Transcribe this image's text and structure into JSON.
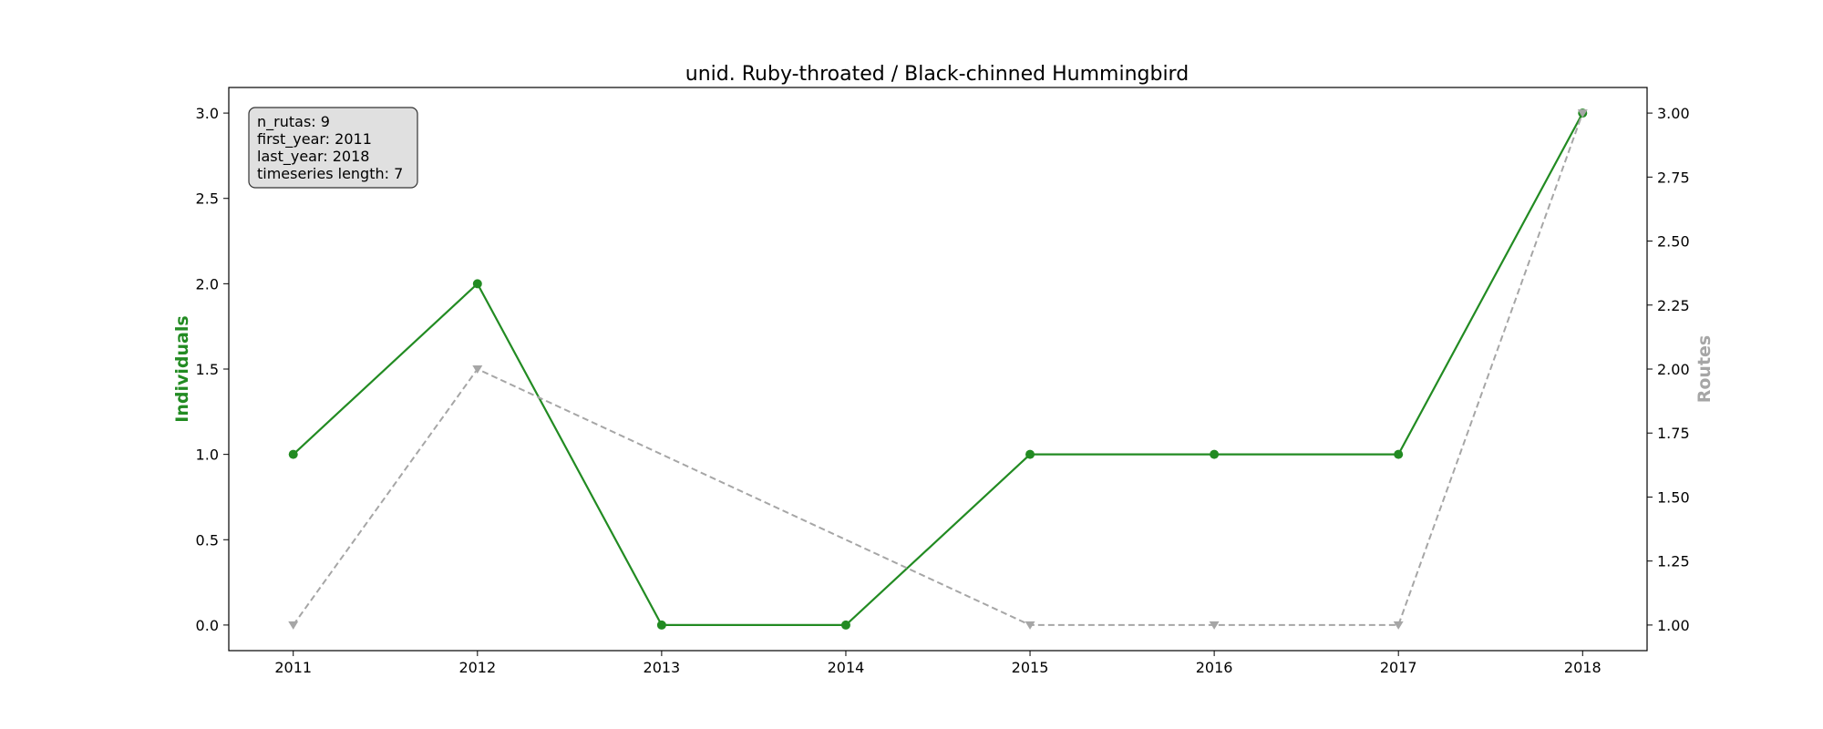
{
  "chart_data": {
    "type": "line",
    "title": "unid. Ruby-throated / Black-chinned Hummingbird",
    "x": [
      2011,
      2012,
      2013,
      2014,
      2015,
      2016,
      2017,
      2018
    ],
    "xlim": [
      2010.65,
      2018.35
    ],
    "x_ticks": [
      "2011",
      "2012",
      "2013",
      "2014",
      "2015",
      "2016",
      "2017",
      "2018"
    ],
    "ylabel_left": "Individuals",
    "ylabel_right": "Routes",
    "ylim_left": [
      -0.15,
      3.15
    ],
    "ylim_right": [
      0.9,
      3.1
    ],
    "y_ticks_left": [
      "0.0",
      "0.5",
      "1.0",
      "1.5",
      "2.0",
      "2.5",
      "3.0"
    ],
    "y_ticks_right": [
      "1.00",
      "1.25",
      "1.50",
      "1.75",
      "2.00",
      "2.25",
      "2.50",
      "2.75",
      "3.00"
    ],
    "grid": false,
    "series": [
      {
        "axis": "left",
        "values": [
          1,
          2,
          0,
          0,
          1,
          1,
          1,
          3
        ],
        "color": "#228b22",
        "style": "solid",
        "marker": "circle"
      },
      {
        "axis": "right",
        "values": [
          1,
          2,
          null,
          null,
          1,
          1,
          1,
          3
        ],
        "color": "#a6a6a6",
        "style": "dashed",
        "marker": "triangle-down"
      }
    ],
    "info_box": {
      "placement": "top-left",
      "lines": [
        "n_rutas: 9",
        "first_year: 2011",
        "last_year: 2018",
        "timeseries length: 7"
      ]
    }
  }
}
